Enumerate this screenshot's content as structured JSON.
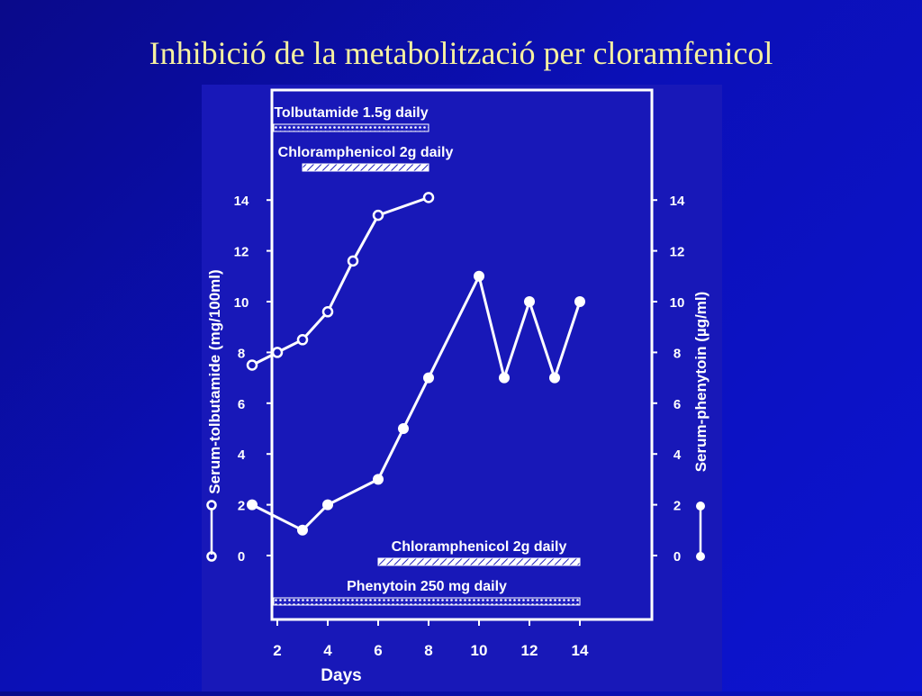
{
  "slide": {
    "title": "Inhibició de la metabolització per cloramfenicol"
  },
  "colors": {
    "background": "#0b10b8",
    "panel": "#1818b8",
    "title": "#f5f0a0",
    "ink": "#ffffff"
  },
  "chart_data": {
    "type": "line",
    "xlabel": "Days",
    "x_ticks": [
      2,
      4,
      6,
      8,
      10,
      12,
      14
    ],
    "xlim": [
      -1,
      15
    ],
    "ylabel_left": "Serum-tolbutamide (mg/100ml)",
    "ylabel_right": "Serum-phenytoin (µg/ml)",
    "ylim": [
      0,
      14
    ],
    "y_ticks": [
      0,
      2,
      4,
      6,
      8,
      10,
      12,
      14
    ],
    "grid": false,
    "series": [
      {
        "axis": "left",
        "marker": "open-circle",
        "x": [
          1,
          2,
          3,
          4,
          5,
          6,
          8
        ],
        "y": [
          7.5,
          8.0,
          8.5,
          9.6,
          11.6,
          13.4,
          14.1
        ]
      },
      {
        "axis": "right",
        "marker": "filled-circle",
        "x": [
          1,
          3,
          4,
          6,
          7,
          8,
          10,
          11,
          12,
          13,
          14
        ],
        "y": [
          2.0,
          1.0,
          2.0,
          3.0,
          5.0,
          7.0,
          11.0,
          7.0,
          10.0,
          7.0,
          10.0
        ]
      }
    ],
    "treatment_bars": [
      {
        "label": "Tolbutamide 1.5g daily",
        "start": -1,
        "end": 8,
        "position": "top",
        "pattern": "dotted"
      },
      {
        "label": "Chloramphenicol 2g daily",
        "start": 3,
        "end": 8,
        "position": "top",
        "pattern": "hatched"
      },
      {
        "label": "Chloramphenicol 2g daily",
        "start": 6,
        "end": 14,
        "position": "bottom",
        "pattern": "hatched"
      },
      {
        "label": "Phenytoin 250 mg daily",
        "start": -1,
        "end": 14,
        "position": "bottom",
        "pattern": "dotted"
      }
    ]
  }
}
